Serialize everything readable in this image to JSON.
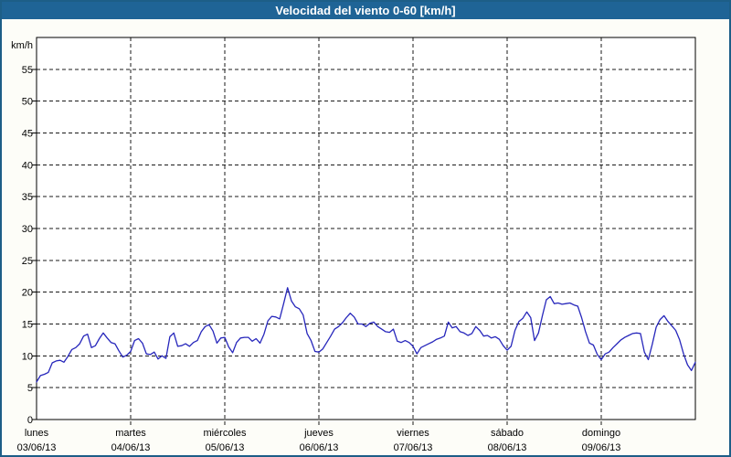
{
  "title": "Velocidad del viento 0-60 [km/h]",
  "colors": {
    "title_bar": "#1f6496",
    "title_text": "#ffffff",
    "window_border": "#1d5e87",
    "background": "#fdfdf8",
    "plot_background": "#ffffff",
    "grid": "#1a1a1a",
    "line": "#2626bb",
    "axis_text": "#000000"
  },
  "y_axis": {
    "unit_label": "km/h",
    "min": 0,
    "max": 60,
    "tick_step": 5,
    "tick_labels": [
      "0",
      "5",
      "10",
      "15",
      "20",
      "25",
      "30",
      "35",
      "40",
      "45",
      "50",
      "55"
    ]
  },
  "x_axis": {
    "days": [
      {
        "name": "lunes",
        "date": "03/06/13"
      },
      {
        "name": "martes",
        "date": "04/06/13"
      },
      {
        "name": "miércoles",
        "date": "05/06/13"
      },
      {
        "name": "jueves",
        "date": "06/06/13"
      },
      {
        "name": "viernes",
        "date": "07/06/13"
      },
      {
        "name": "sábado",
        "date": "08/06/13"
      },
      {
        "name": "domingo",
        "date": "09/06/13"
      }
    ]
  },
  "chart_data": {
    "type": "line",
    "title": "Velocidad del viento 0-60 [km/h]",
    "xlabel": "",
    "ylabel": "km/h",
    "ylim": [
      0,
      60
    ],
    "y_ticks": [
      0,
      5,
      10,
      15,
      20,
      25,
      30,
      35,
      40,
      45,
      50,
      55
    ],
    "grid": "dashed, both axes",
    "legend_position": "none",
    "x_unit": "hours from 2013-06-03 00:00 (1 point per hour)",
    "x_range_hours": [
      0,
      168
    ],
    "x_day_labels": [
      "lunes 03/06/13",
      "martes 04/06/13",
      "miércoles 05/06/13",
      "jueves 06/06/13",
      "viernes 07/06/13",
      "sábado 08/06/13",
      "domingo 09/06/13"
    ],
    "series": [
      {
        "name": "Velocidad del viento",
        "unit": "km/h",
        "color": "#2626bb",
        "values": [
          5.9,
          6.9,
          7.1,
          7.4,
          8.9,
          9.2,
          9.3,
          9.0,
          9.9,
          11.0,
          11.3,
          11.9,
          13.1,
          13.4,
          11.3,
          11.6,
          12.7,
          13.6,
          12.8,
          12.1,
          11.9,
          10.8,
          9.8,
          10.1,
          10.7,
          12.4,
          12.7,
          12.0,
          10.3,
          10.2,
          10.6,
          9.5,
          10.0,
          9.6,
          13.0,
          13.6,
          11.5,
          11.6,
          11.9,
          11.5,
          12.1,
          12.4,
          13.8,
          14.6,
          14.9,
          13.9,
          12.0,
          12.8,
          12.9,
          11.4,
          10.5,
          12.1,
          12.8,
          12.9,
          12.9,
          12.3,
          12.7,
          12.0,
          13.4,
          15.5,
          16.2,
          16.1,
          15.8,
          18.2,
          20.7,
          18.6,
          17.7,
          17.4,
          16.4,
          13.5,
          12.4,
          10.7,
          10.6,
          11.1,
          12.1,
          13.1,
          14.2,
          14.6,
          15.2,
          16.0,
          16.7,
          16.1,
          15.0,
          15.0,
          14.6,
          15.1,
          15.3,
          14.6,
          14.2,
          13.8,
          13.7,
          14.2,
          12.3,
          12.1,
          12.4,
          12.1,
          11.5,
          10.3,
          11.3,
          11.6,
          11.9,
          12.2,
          12.6,
          12.8,
          13.1,
          15.3,
          14.4,
          14.6,
          13.8,
          13.6,
          13.2,
          13.5,
          14.6,
          14.0,
          13.1,
          13.2,
          12.8,
          13.0,
          12.6,
          11.6,
          10.9,
          11.5,
          14.0,
          15.4,
          15.9,
          16.9,
          16.0,
          12.4,
          13.6,
          16.3,
          18.8,
          19.3,
          18.2,
          18.3,
          18.1,
          18.2,
          18.3,
          18.0,
          17.8,
          16.0,
          13.8,
          12.0,
          11.7,
          10.2,
          9.4,
          10.3,
          10.6,
          11.3,
          11.9,
          12.5,
          12.9,
          13.2,
          13.5,
          13.6,
          13.5,
          10.6,
          9.4,
          11.8,
          14.5,
          15.7,
          16.3,
          15.4,
          14.7,
          14.0,
          12.5,
          10.3,
          8.6,
          7.7,
          9.0
        ]
      }
    ]
  }
}
